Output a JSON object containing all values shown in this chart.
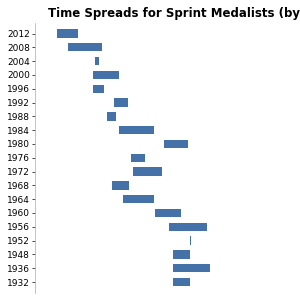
{
  "title": "Time Spreads for Sprint Medalists (by Year)",
  "years": [
    2012,
    2008,
    2004,
    2000,
    1996,
    1992,
    1988,
    1984,
    1980,
    1976,
    1972,
    1968,
    1964,
    1960,
    1956,
    1952,
    1948,
    1936,
    1932
  ],
  "intervals": [
    [
      9.63,
      9.75
    ],
    [
      9.69,
      9.89
    ],
    [
      9.85,
      9.87
    ],
    [
      9.84,
      9.99
    ],
    [
      9.84,
      9.9
    ],
    [
      9.96,
      10.04
    ],
    [
      9.92,
      9.97
    ],
    [
      9.99,
      10.19
    ],
    [
      10.25,
      10.39
    ],
    [
      10.06,
      10.14
    ],
    [
      10.07,
      10.24
    ],
    [
      9.95,
      10.05
    ],
    [
      10.01,
      10.19
    ],
    [
      10.2,
      10.35
    ],
    [
      10.28,
      10.5
    ],
    [
      10.4,
      10.41
    ],
    [
      10.3,
      10.4
    ],
    [
      10.3,
      10.52
    ],
    [
      10.3,
      10.4
    ]
  ],
  "bar_color": "#4472a8",
  "bar_height": 0.6,
  "background_color": "#ffffff",
  "grid_color": "#cccccc",
  "xlim": [
    9.5,
    11.0
  ],
  "title_fontsize": 8.5,
  "tick_fontsize": 6.5,
  "title_fontweight": "bold"
}
